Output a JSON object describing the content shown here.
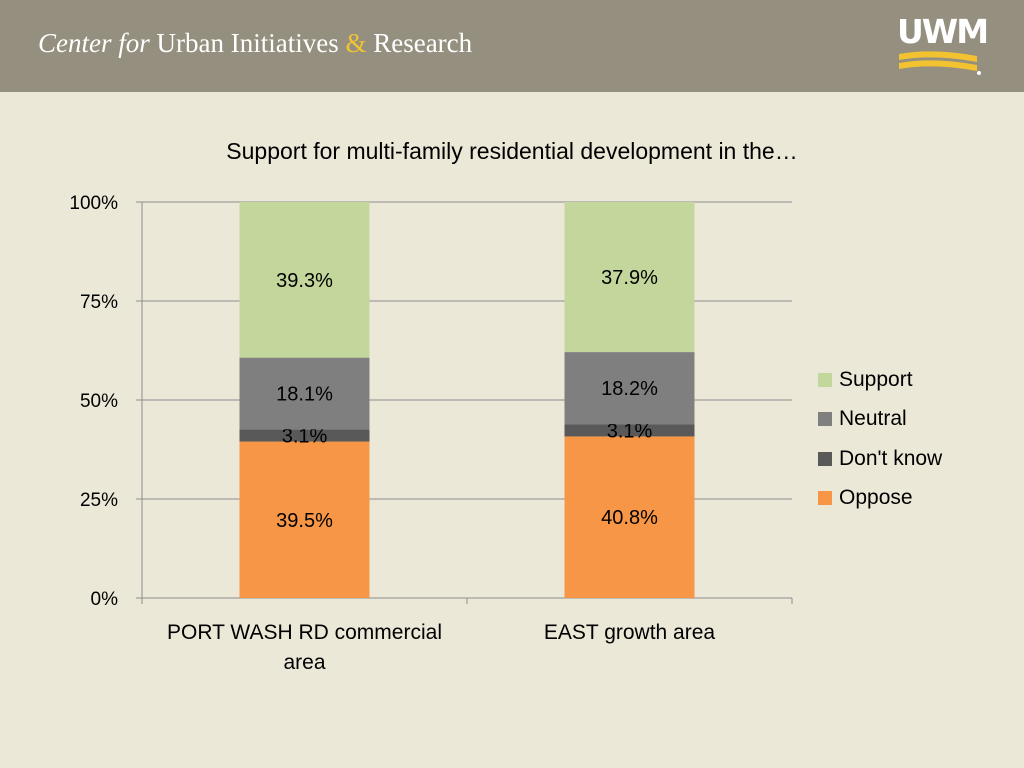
{
  "header": {
    "title_italic": "Center for",
    "title_main": "Urban Initiatives",
    "title_amp": "&",
    "title_end": "Research",
    "logo_text": "UWM",
    "brand_color": "#F2C230",
    "bar_color": "#958F7F"
  },
  "chart_data": {
    "type": "bar",
    "stacked": true,
    "title": "Support for multi-family residential development in the…",
    "categories": [
      "PORT WASH RD commercial area",
      "EAST growth area"
    ],
    "category_lines": [
      [
        "PORT WASH RD commercial",
        "area"
      ],
      [
        "EAST growth area"
      ]
    ],
    "series": [
      {
        "name": "Oppose",
        "values": [
          39.5,
          40.8
        ],
        "labels": [
          "39.5%",
          "40.8%"
        ],
        "color": "#F79646"
      },
      {
        "name": "Don't know",
        "values": [
          3.1,
          3.1
        ],
        "labels": [
          "3.1%",
          "3.1%"
        ],
        "color": "#595959"
      },
      {
        "name": "Neutral",
        "values": [
          18.1,
          18.2
        ],
        "labels": [
          "18.1%",
          "18.2%"
        ],
        "color": "#7F7F7F"
      },
      {
        "name": "Support",
        "values": [
          39.3,
          37.9
        ],
        "labels": [
          "39.3%",
          "37.9%"
        ],
        "color": "#C3D69B"
      }
    ],
    "ylim": [
      0,
      100
    ],
    "y_ticks": [
      0,
      25,
      50,
      75,
      100
    ],
    "y_tick_labels": [
      "0%",
      "25%",
      "50%",
      "75%",
      "100%"
    ],
    "grid": true,
    "legend_position": "right",
    "legend_order": [
      "Support",
      "Neutral",
      "Don't know",
      "Oppose"
    ]
  }
}
